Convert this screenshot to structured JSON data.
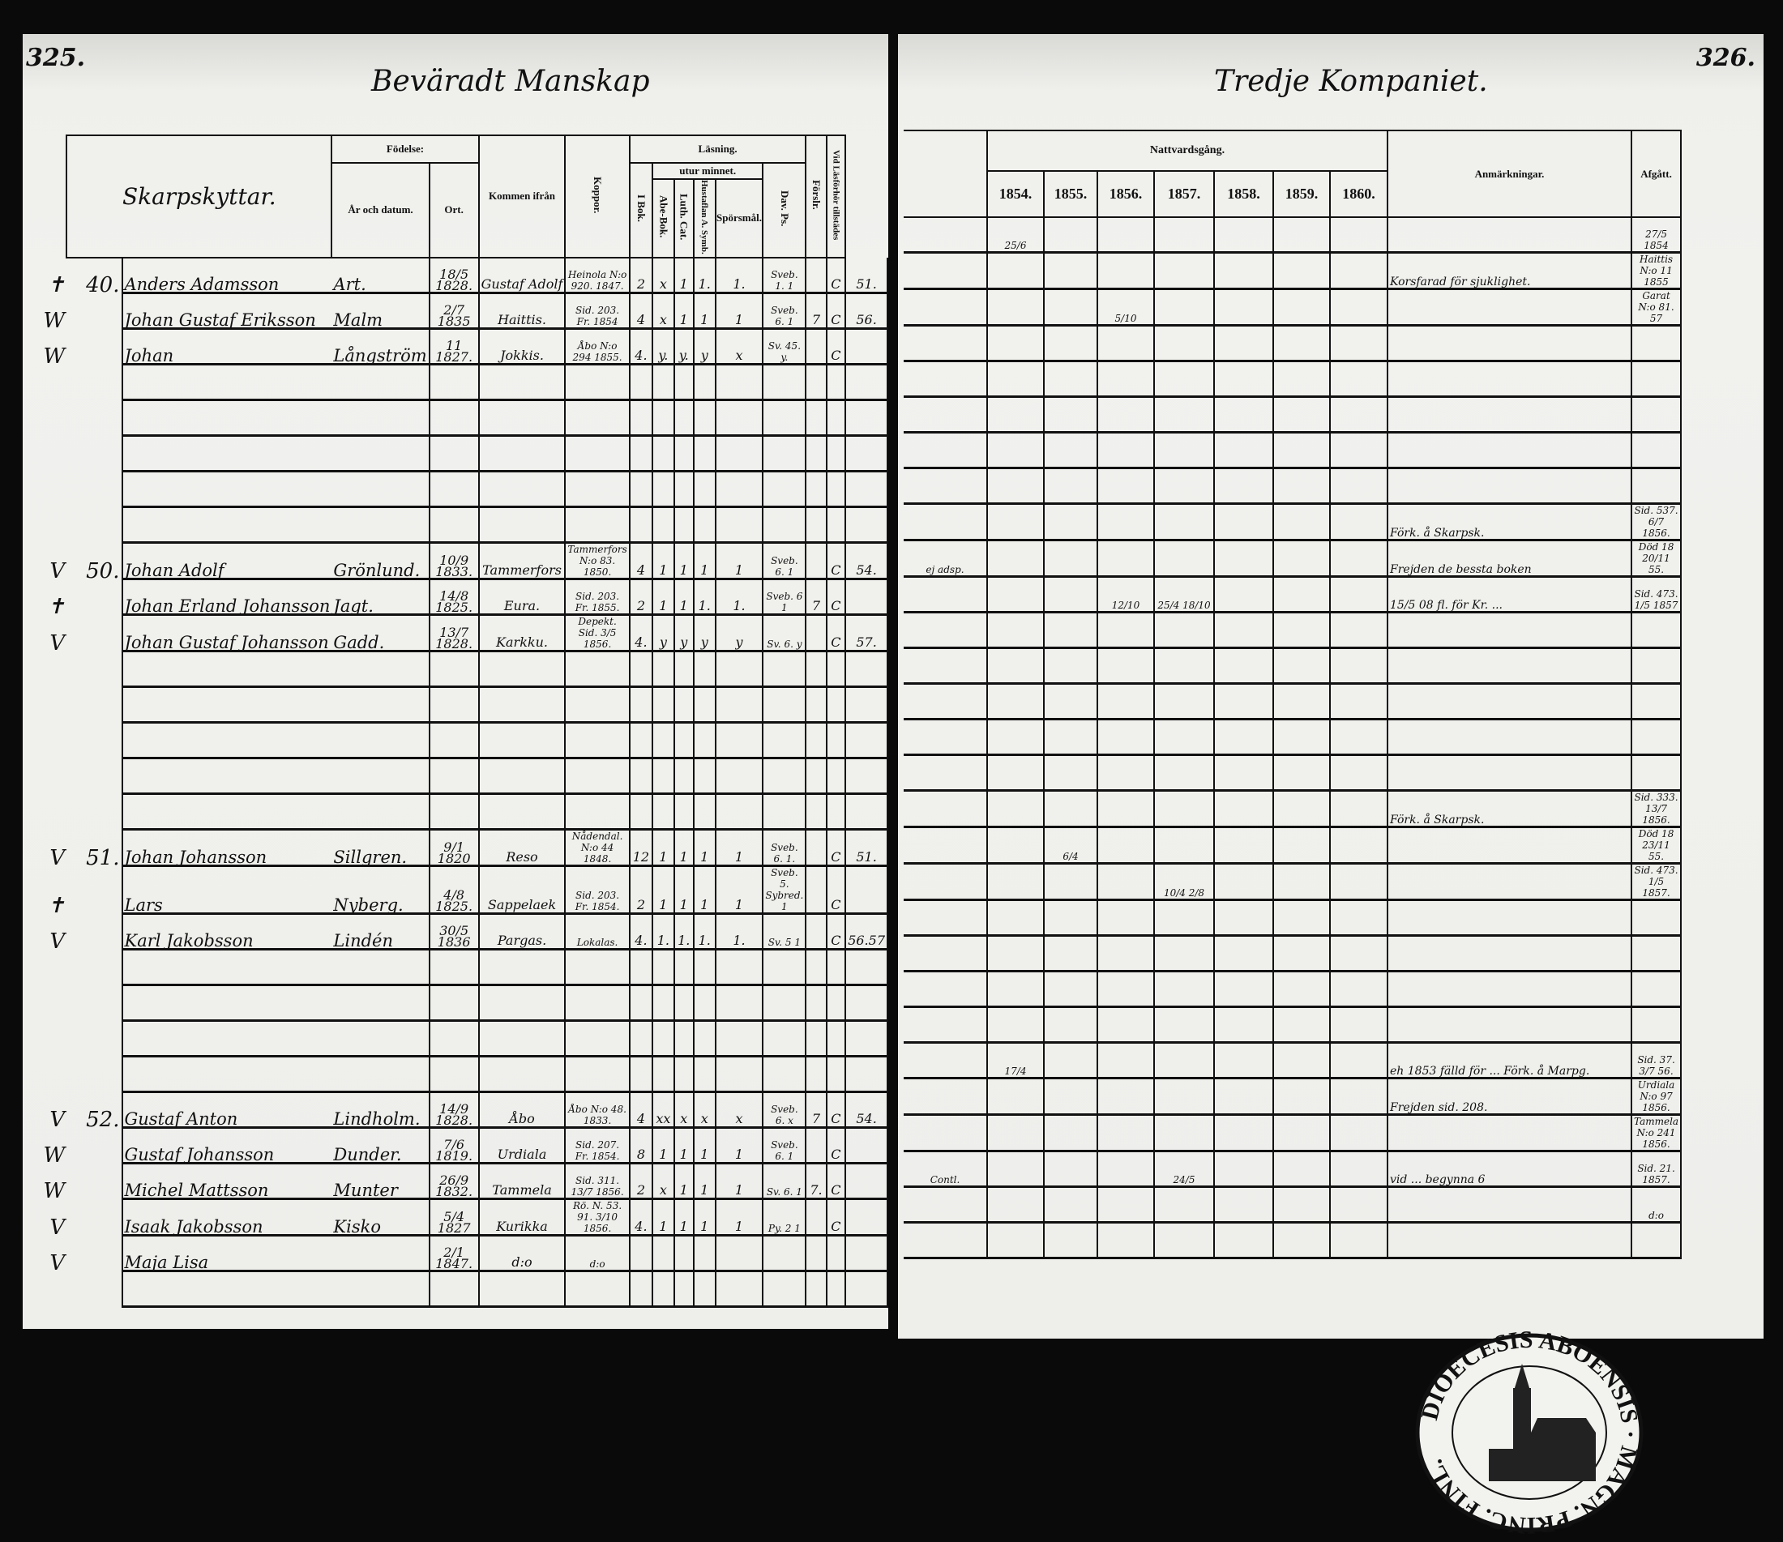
{
  "left": {
    "page_number": "325.",
    "title": "Beväradt Manskap",
    "headers": {
      "name": "Skarpskyttar.",
      "birth": "Födelse:",
      "birth_date": "År och datum.",
      "birth_place": "Ort.",
      "from": "Kommen ifrån",
      "koppor": "Koppor.",
      "reading": "Läsning.",
      "ibok": "I Bok.",
      "memory": "utur minnet.",
      "abe": "Abe-Bok.",
      "luth": "Luth. Cat.",
      "hust": "Hustaflan A. Symb.",
      "spors": "Spörsmål.",
      "dav": "Dav. Ps.",
      "forslr": "Förslr.",
      "vid": "Vid Läsförhör tillstädes"
    },
    "rows": [
      {
        "mark": "✝",
        "no": "40.",
        "given": "Anders Adamsson",
        "surname": "Art.",
        "born": "18/5 1828.",
        "place": "Gustaf Adolf",
        "from": "Heinola N:o 920. 1847.",
        "koppor": "2",
        "ibok": "x",
        "abe": "1",
        "luth": "1.",
        "hust": "1.",
        "spors": "Sveb. 1. 1",
        "dav": "",
        "forslr": "C",
        "vid": "51."
      },
      {
        "mark": "W",
        "no": "",
        "given": "Johan Gustaf Eriksson",
        "surname": "Malm",
        "born": "2/7 1835",
        "place": "Haittis.",
        "from": "Sid. 203. Fr. 1854",
        "koppor": "4",
        "ibok": "x",
        "abe": "1",
        "luth": "1",
        "hust": "1",
        "spors": "Sveb. 6. 1",
        "dav": "7",
        "forslr": "C",
        "vid": "56."
      },
      {
        "mark": "W",
        "no": "",
        "given": "Johan",
        "surname": "Långström",
        "born": "11 1827.",
        "place": "Jokkis.",
        "from": "Åbo N:o 294 1855.",
        "koppor": "4.",
        "ibok": "y.",
        "abe": "y.",
        "luth": "y",
        "hust": "x",
        "spors": "Sv. 45. y.",
        "dav": "",
        "forslr": "C",
        "vid": ""
      },
      {},
      {},
      {},
      {},
      {},
      {
        "mark": "V",
        "no": "50.",
        "given": "Johan Adolf",
        "surname": "Grönlund.",
        "born": "10/9 1833.",
        "place": "Tammerfors",
        "from": "Tammerfors N:o 83. 1850.",
        "koppor": "4",
        "ibok": "1",
        "abe": "1",
        "luth": "1",
        "hust": "1",
        "spors": "Sveb. 6. 1",
        "dav": "",
        "forslr": "C",
        "vid": "54."
      },
      {
        "mark": "✝",
        "no": "",
        "given": "Johan Erland Johansson",
        "surname": "Jagt.",
        "born": "14/8 1825.",
        "place": "Eura.",
        "from": "Sid. 203. Fr. 1855.",
        "koppor": "2",
        "ibok": "1",
        "abe": "1",
        "luth": "1.",
        "hust": "1.",
        "spors": "Sveb. 6 1",
        "dav": "7",
        "forslr": "C",
        "vid": ""
      },
      {
        "mark": "V",
        "no": "",
        "given": "Johan Gustaf Johansson",
        "surname": "Gadd.",
        "born": "13/7 1828.",
        "place": "Karkku.",
        "from": "Depekt. Sid. 3/5 1856.",
        "koppor": "4.",
        "ibok": "y",
        "abe": "y",
        "luth": "y",
        "hust": "y",
        "spors": "Sv. 6. y",
        "dav": "",
        "forslr": "C",
        "vid": "57."
      },
      {},
      {},
      {},
      {},
      {},
      {
        "mark": "V",
        "no": "51.",
        "given": "Johan Johansson",
        "surname": "Sillgren.",
        "born": "9/1 1820",
        "place": "Reso",
        "from": "Nådendal. N:o 44 1848.",
        "koppor": "12",
        "ibok": "1",
        "abe": "1",
        "luth": "1",
        "hust": "1",
        "spors": "Sveb. 6. 1.",
        "dav": "",
        "forslr": "C",
        "vid": "51."
      },
      {
        "mark": "✝",
        "no": "",
        "given": "Lars",
        "surname": "Nyberg.",
        "born": "4/8 1825.",
        "place": "Sappelaek",
        "from": "Sid. 203. Fr. 1854.",
        "koppor": "2",
        "ibok": "1",
        "abe": "1",
        "luth": "1",
        "hust": "1",
        "spors": "Sveb. 5. Sybred. 1",
        "dav": "",
        "forslr": "C",
        "vid": ""
      },
      {
        "mark": "V",
        "no": "",
        "given": "Karl Jakobsson",
        "surname": "Lindén",
        "born": "30/5 1836",
        "place": "Pargas.",
        "from": "Lokalas.",
        "koppor": "4.",
        "ibok": "1.",
        "abe": "1.",
        "luth": "1.",
        "hust": "1.",
        "spors": "Sv. 5 1",
        "dav": "",
        "forslr": "C",
        "vid": "56.57"
      },
      {},
      {},
      {},
      {},
      {
        "mark": "V",
        "no": "52.",
        "given": "Gustaf Anton",
        "surname": "Lindholm.",
        "born": "14/9 1828.",
        "place": "Åbo",
        "from": "Åbo N:o 48. 1833.",
        "koppor": "4",
        "ibok": "xx",
        "abe": "x",
        "luth": "x",
        "hust": "x",
        "spors": "Sveb. 6. x",
        "dav": "7",
        "forslr": "C",
        "vid": "54."
      },
      {
        "mark": "W",
        "no": "",
        "given": "Gustaf Johansson",
        "surname": "Dunder.",
        "born": "7/6 1819.",
        "place": "Urdiala",
        "from": "Sid. 207. Fr. 1854.",
        "koppor": "8",
        "ibok": "1",
        "abe": "1",
        "luth": "1",
        "hust": "1",
        "spors": "Sveb. 6. 1",
        "dav": "",
        "forslr": "C",
        "vid": ""
      },
      {
        "mark": "W",
        "no": "",
        "given": "Michel Mattsson",
        "surname": "Munter",
        "born": "26/9 1832.",
        "place": "Tammela",
        "from": "Sid. 311. 13/7 1856.",
        "koppor": "2",
        "ibok": "x",
        "abe": "1",
        "luth": "1",
        "hust": "1",
        "spors": "Sv. 6. 1",
        "dav": "7.",
        "forslr": "C",
        "vid": ""
      },
      {
        "mark": "V",
        "no": "",
        "given": "Isaak Jakobsson",
        "surname": "Kisko",
        "born": "5/4 1827",
        "place": "Kurikka",
        "from": "Rö. N. 53. 91. 3/10 1856.",
        "koppor": "4.",
        "ibok": "1",
        "abe": "1",
        "luth": "1",
        "hust": "1",
        "spors": "Py. 2 1",
        "dav": "",
        "forslr": "C",
        "vid": ""
      },
      {
        "mark": "V",
        "no": "",
        "given": "Maja Lisa",
        "surname": "",
        "born": "2/1 1847.",
        "place": "d:o",
        "from": "d:o",
        "koppor": "",
        "ibok": "",
        "abe": "",
        "luth": "",
        "hust": "",
        "spors": "",
        "dav": "",
        "forslr": "",
        "vid": ""
      },
      {}
    ]
  },
  "right": {
    "page_number": "326.",
    "title": "Tredje Kompaniet.",
    "headers": {
      "communion": "Nattvardsgång.",
      "years": [
        "1854.",
        "1855.",
        "1856.",
        "1857.",
        "1858.",
        "1859.",
        "1860."
      ],
      "remarks": "Anmärkningar.",
      "departed": "Afgått."
    },
    "rows": [
      {
        "y1854": "25/6",
        "afgatt": "27/5 1854"
      },
      {
        "remark": "Korsfarad för sjuklighet.",
        "afgatt": "Haittis N:o 11 1855"
      },
      {
        "y1856": "5/10",
        "afgatt": "Garat N:o 81. 57"
      },
      {},
      {},
      {},
      {},
      {},
      {
        "remark": "Förk. å Skarpsk.",
        "afgatt": "Sid. 537. 6/7 1856."
      },
      {
        "pre": "ej adsp.",
        "remark": "Frejden de bessta boken",
        "afgatt": "Död 18 20/11 55."
      },
      {
        "y1856": "12/10",
        "y1857": "25/4 18/10",
        "remark": "15/5 08 fl. för Kr. ...",
        "afgatt": "Sid. 473. 1/5 1857"
      },
      {},
      {},
      {},
      {},
      {},
      {
        "remark": "Förk. å Skarpsk.",
        "afgatt": "Sid. 333. 13/7 1856."
      },
      {
        "y1855": "6/4",
        "afgatt": "Död 18 23/11 55."
      },
      {
        "y1857": "10/4 2/8",
        "afgatt": "Sid. 473. 1/5 1857."
      },
      {},
      {},
      {},
      {},
      {
        "y1854": "17/4",
        "remark": "eh 1853 fälld för ... Förk. å Marpg.",
        "afgatt": "Sid. 37. 3/7 56."
      },
      {
        "remark": "Frejden sid. 208.",
        "afgatt": "Urdiala N:o 97 1856."
      },
      {
        "afgatt": "Tammela N:o 241 1856."
      },
      {
        "pre": "Contl.",
        "y1857": "24/5",
        "remark": "vid ... begynna 6",
        "afgatt": "Sid. 21. 1857."
      },
      {
        "afgatt": "d:o"
      },
      {}
    ]
  },
  "stamp": {
    "text": "DIOECESIS ABOENSIS · MAGN. PRINC. FINL."
  }
}
